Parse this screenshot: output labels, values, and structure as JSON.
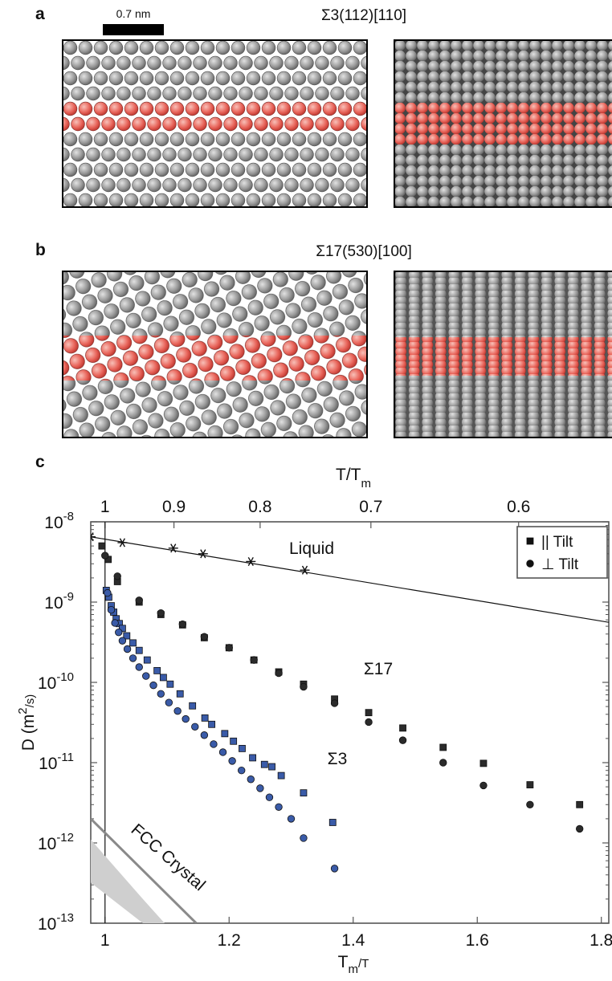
{
  "panels": {
    "a": {
      "label": "a",
      "scale_bar": "0.7 nm",
      "title": "Σ3(112)[110]"
    },
    "b": {
      "label": "b",
      "title": "Σ17(530)[100]"
    },
    "c": {
      "label": "c"
    }
  },
  "chart_data": {
    "type": "scatter",
    "yscale": "log",
    "xlim": [
      0.977,
      1.812
    ],
    "ylim": [
      1e-13,
      1e-08
    ],
    "xticks": [
      1,
      1.2,
      1.4,
      1.6,
      1.8
    ],
    "yticks": [
      {
        "value": 1e-13,
        "label": "10",
        "exponent": "-13"
      },
      {
        "value": 1e-12,
        "label": "10",
        "exponent": "-12"
      },
      {
        "value": 1e-11,
        "label": "10",
        "exponent": "-11"
      },
      {
        "value": 1e-10,
        "label": "10",
        "exponent": "-10"
      },
      {
        "value": 1e-09,
        "label": "10",
        "exponent": "-9"
      },
      {
        "value": 1e-08,
        "label": "10",
        "exponent": "-8"
      }
    ],
    "x2scale": "reciprocal",
    "x2ticks": [
      1,
      0.9,
      0.8,
      0.7,
      0.6
    ],
    "xlabel": {
      "text": "T",
      "sub": "m",
      "tail": "/T"
    },
    "x2label": {
      "text": "T/T",
      "sub": "m"
    },
    "ylabel": {
      "text": "D (m",
      "sup": "2",
      "tail": "/s)"
    },
    "vline": 1,
    "legend": {
      "loc": "upper right",
      "entries": [
        {
          "label": "|| Tilt",
          "marker": "square"
        },
        {
          "label": "⊥ Tilt",
          "marker": "circle"
        }
      ]
    },
    "annotations": {
      "liquid": "Liquid",
      "sigma17": "Σ17",
      "sigma3": "Σ3",
      "fcc": "FCC Crystal"
    },
    "series": [
      {
        "style": "line",
        "color": "#111111",
        "x": [
          0.977,
          1.812
        ],
        "values": [
          6.5e-09,
          5.6e-10
        ]
      },
      {
        "style": "star",
        "color": "#111111",
        "x": [
          0.977,
          1.028,
          1.11,
          1.158,
          1.235,
          1.322
        ],
        "values": [
          6.5e-09,
          5.5e-09,
          4.7e-09,
          4e-09,
          3.2e-09,
          2.5e-09
        ]
      },
      {
        "style": "square",
        "color": "#2b2b2b",
        "x": [
          0.995,
          1.005,
          1.02,
          1.055,
          1.09,
          1.125,
          1.16,
          1.2,
          1.24,
          1.28,
          1.32,
          1.37,
          1.425,
          1.48,
          1.545,
          1.61,
          1.685,
          1.765
        ],
        "values": [
          5e-09,
          3.4e-09,
          1.8e-09,
          1e-09,
          7e-10,
          5.2e-10,
          3.6e-10,
          2.7e-10,
          1.9e-10,
          1.35e-10,
          9.5e-11,
          6.2e-11,
          4.2e-11,
          2.7e-11,
          1.55e-11,
          9.8e-12,
          5.3e-12,
          3e-12
        ]
      },
      {
        "style": "circle",
        "color": "#2b2b2b",
        "x": [
          1.0,
          1.02,
          1.055,
          1.09,
          1.125,
          1.16,
          1.2,
          1.24,
          1.28,
          1.32,
          1.37,
          1.425,
          1.48,
          1.545,
          1.61,
          1.685,
          1.765
        ],
        "values": [
          3.8e-09,
          2.1e-09,
          1.05e-09,
          7.3e-10,
          5.3e-10,
          3.7e-10,
          2.7e-10,
          1.9e-10,
          1.3e-10,
          8.8e-11,
          5.5e-11,
          3.2e-11,
          1.9e-11,
          1e-11,
          5.2e-12,
          3e-12,
          1.5e-12
        ]
      },
      {
        "style": "square",
        "color": "#3a5ba8",
        "x": [
          1.002,
          1.006,
          1.01,
          1.014,
          1.018,
          1.023,
          1.028,
          1.035,
          1.045,
          1.055,
          1.068,
          1.084,
          1.094,
          1.105,
          1.121,
          1.141,
          1.161,
          1.172,
          1.193,
          1.207,
          1.221,
          1.238,
          1.257,
          1.269,
          1.284,
          1.32,
          1.367
        ],
        "values": [
          1.4e-09,
          1.15e-09,
          9e-10,
          7.5e-10,
          6.2e-10,
          5.4e-10,
          4.7e-10,
          3.8e-10,
          3.1e-10,
          2.5e-10,
          1.9e-10,
          1.4e-10,
          1.15e-10,
          9.5e-11,
          7.2e-11,
          5.1e-11,
          3.6e-11,
          3e-11,
          2.3e-11,
          1.85e-11,
          1.5e-11,
          1.15e-11,
          9.5e-12,
          8.9e-12,
          6.9e-12,
          4.2e-12,
          1.8e-12
        ]
      },
      {
        "style": "circle",
        "color": "#3a5ba8",
        "x": [
          1.004,
          1.01,
          1.016,
          1.022,
          1.028,
          1.036,
          1.045,
          1.055,
          1.066,
          1.078,
          1.09,
          1.103,
          1.117,
          1.13,
          1.145,
          1.16,
          1.175,
          1.19,
          1.205,
          1.22,
          1.235,
          1.25,
          1.265,
          1.28,
          1.3,
          1.32,
          1.37
        ],
        "values": [
          1.3e-09,
          8e-10,
          5.5e-10,
          4.2e-10,
          3.3e-10,
          2.6e-10,
          2e-10,
          1.55e-10,
          1.2e-10,
          9.2e-11,
          7.2e-11,
          5.6e-11,
          4.4e-11,
          3.5e-11,
          2.8e-11,
          2.2e-11,
          1.7e-11,
          1.35e-11,
          1.05e-11,
          8e-12,
          6.2e-12,
          4.8e-12,
          3.7e-12,
          2.8e-12,
          2e-12,
          1.15e-12,
          4.8e-13
        ]
      },
      {
        "style": "area",
        "color": "#cfcfcf",
        "x": [
          0.977,
          1.061,
          1.096
        ],
        "upper": [
          1.1e-12,
          2e-13,
          1e-13
        ],
        "lower": [
          3.2e-13,
          1e-13,
          1e-13
        ]
      },
      {
        "style": "line",
        "color": "#8a8a8a",
        "width": 3,
        "x": [
          0.977,
          1.147
        ],
        "values": [
          2e-12,
          1e-13
        ]
      }
    ]
  }
}
